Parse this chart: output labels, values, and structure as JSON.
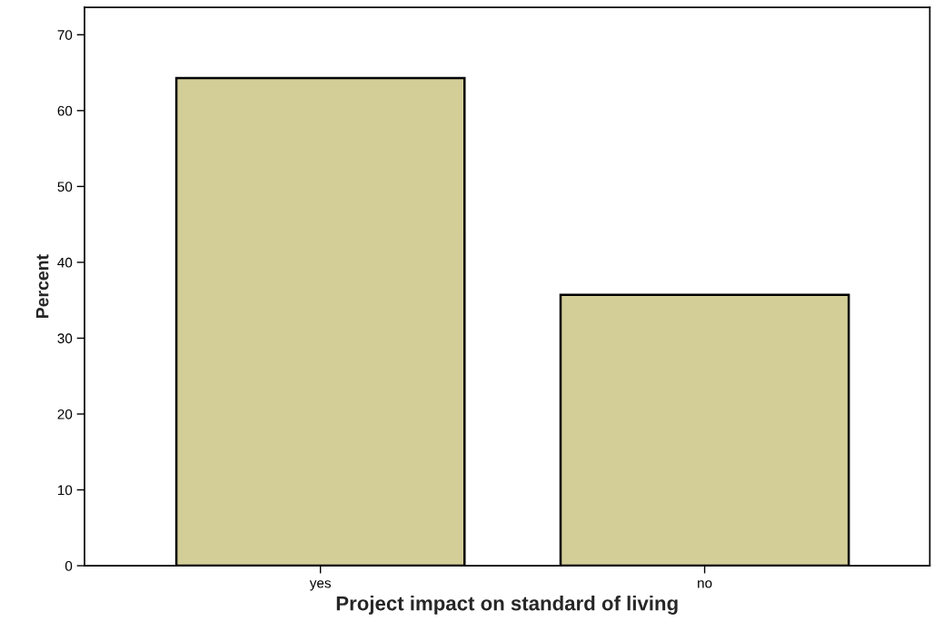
{
  "chart_data": {
    "type": "bar",
    "xlabel": "Project impact on standard of living",
    "ylabel": "Percent",
    "categories": [
      "yes",
      "no"
    ],
    "values": [
      64.3,
      35.7
    ],
    "color": "#d3cd98",
    "ylim": [
      0,
      73.6
    ],
    "yticks": [
      0,
      10,
      20,
      30,
      40,
      50,
      60,
      70
    ],
    "grid": false
  }
}
